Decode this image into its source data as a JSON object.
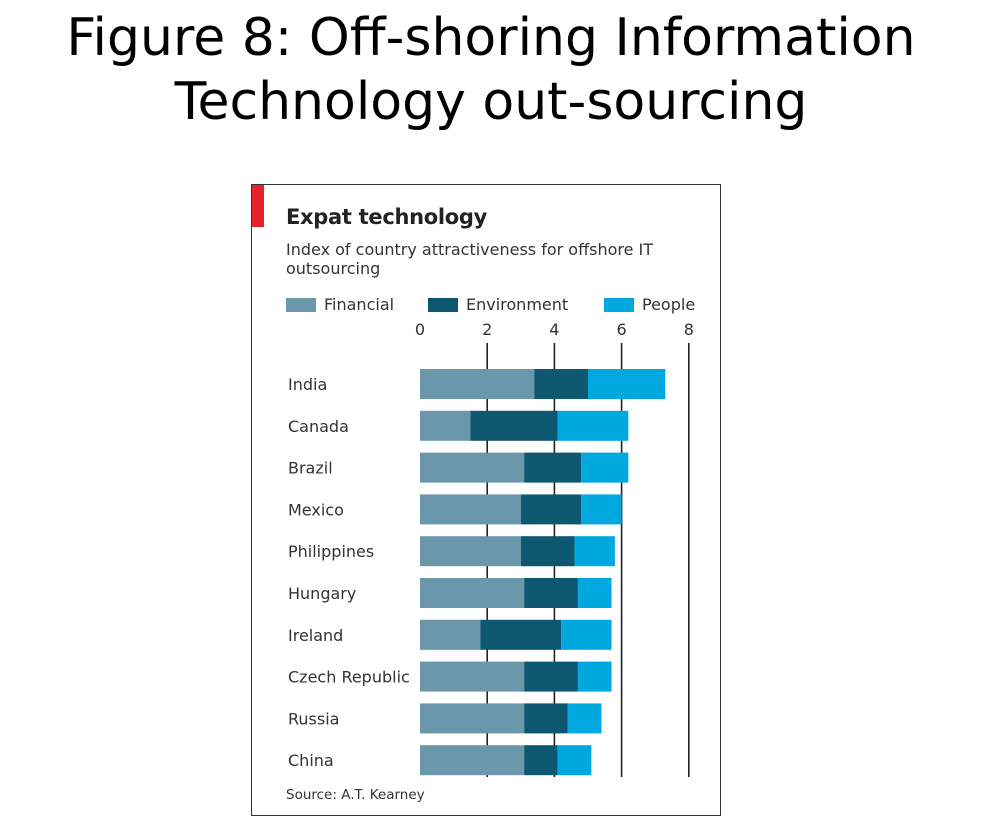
{
  "slide": {
    "title_line1": "Figure 8: Off-shoring Information",
    "title_line2": "Technology out-sourcing"
  },
  "colors": {
    "financial": "#6b97ad",
    "environment": "#0d5770",
    "people": "#00a8df",
    "accent_red": "#e8222c",
    "axis": "#222222"
  },
  "chart_data": {
    "type": "bar",
    "orientation": "horizontal",
    "stacked": true,
    "title": "Expat technology",
    "subtitle": "Index of country attractiveness for offshore IT outsourcing",
    "source": "Source: A.T. Kearney",
    "xlim": [
      0,
      8
    ],
    "xticks": [
      0,
      2,
      4,
      6,
      8
    ],
    "grid": true,
    "legend_position": "top",
    "categories": [
      "India",
      "Canada",
      "Brazil",
      "Mexico",
      "Philippines",
      "Hungary",
      "Ireland",
      "Czech Republic",
      "Russia",
      "China"
    ],
    "series": [
      {
        "name": "Financial",
        "values": [
          3.4,
          1.5,
          3.1,
          3.0,
          3.0,
          3.1,
          1.8,
          3.1,
          3.1,
          3.1
        ]
      },
      {
        "name": "Environment",
        "values": [
          1.6,
          2.6,
          1.7,
          1.8,
          1.6,
          1.6,
          2.4,
          1.6,
          1.3,
          1.0
        ]
      },
      {
        "name": "People",
        "values": [
          2.3,
          2.1,
          1.4,
          1.2,
          1.2,
          1.0,
          1.5,
          1.0,
          1.0,
          1.0
        ]
      }
    ]
  }
}
